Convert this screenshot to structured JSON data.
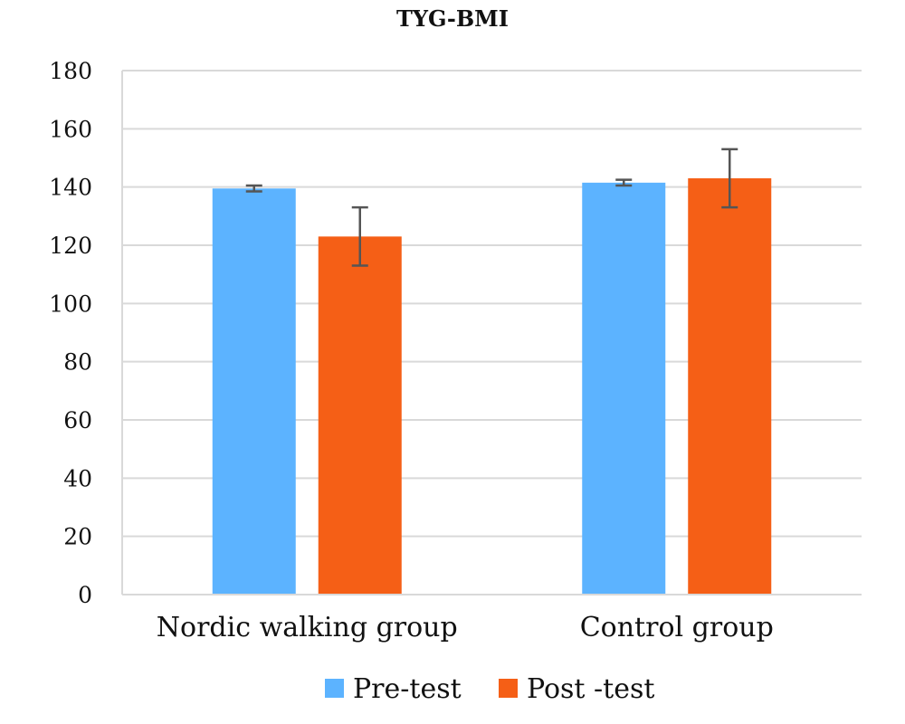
{
  "chart_data": {
    "type": "bar",
    "title": "TYG-BMI",
    "xlabel": "",
    "ylabel": "",
    "ylim": [
      0,
      180
    ],
    "yticks": [
      0,
      20,
      40,
      60,
      80,
      100,
      120,
      140,
      160,
      180
    ],
    "grid": true,
    "legend_position": "bottom",
    "categories": [
      "Nordic walking group",
      "Control group"
    ],
    "series": [
      {
        "name": "Pre-test",
        "color": "#5cb3ff",
        "values": [
          139.5,
          141.5
        ],
        "errors": [
          1,
          1
        ]
      },
      {
        "name": "Post -test",
        "color": "#f55f16",
        "values": [
          123,
          143
        ],
        "errors": [
          10,
          10
        ]
      }
    ]
  }
}
